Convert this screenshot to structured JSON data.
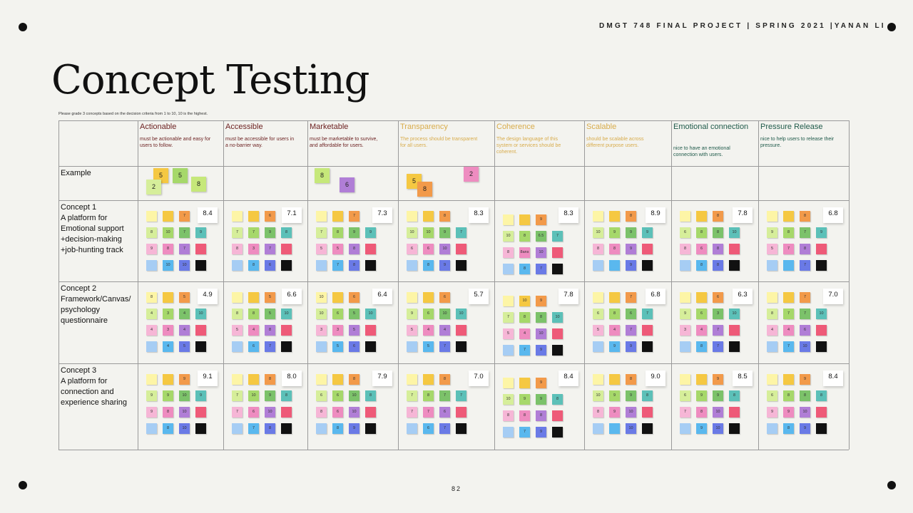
{
  "header": {
    "course": "DMGT 748 FINAL PROJECT | SPRING 2021 |YANAN LI"
  },
  "title": "Concept Testing",
  "instruction": "Please grade 3 concepts based on the decision criteria from 1 to 10, 10 is the highest.",
  "criteria": [
    {
      "name": "Actionable",
      "description": "must be actionable and easy for users to follow."
    },
    {
      "name": "Accessible",
      "description": "must be accessible for users in a no-barrier way."
    },
    {
      "name": "Marketable",
      "description": "must be marketable to survive, and affordable for users."
    },
    {
      "name": "Transparency",
      "description": "The process should be transparent for all users."
    },
    {
      "name": "Coherence",
      "description": "The design language of this system or services should be coherent."
    },
    {
      "name": "Scalable",
      "description": "should be scalable across different purpose users."
    },
    {
      "name": "Emotional connection",
      "description": "nice to have an emotional connection with users."
    },
    {
      "name": "Pressure Release",
      "description": "nice to help users to release their pressure."
    }
  ],
  "example": {
    "label": "Example",
    "notes": [
      [
        "5",
        "5",
        "2",
        "8"
      ],
      [],
      [
        "8",
        "6"
      ],
      [
        "5",
        "8",
        "2"
      ],
      [],
      [],
      [],
      []
    ]
  },
  "concepts": [
    {
      "label": [
        "Concept 1",
        "A platform for",
        "Emotional support",
        "+decision-making",
        "+job-hunting track"
      ],
      "cells": [
        {
          "score": "8.4",
          "notes": [
            [
              null,
              null,
              "7"
            ],
            [
              "8",
              "10",
              "7",
              "9"
            ],
            [
              "9",
              "8",
              "7",
              null
            ],
            [
              null,
              "10",
              "10",
              null
            ]
          ]
        },
        {
          "score": "7.1",
          "notes": [
            [
              null,
              null,
              "6"
            ],
            [
              "7",
              "7",
              "9",
              "8"
            ],
            [
              "8",
              "3",
              "7",
              null
            ],
            [
              null,
              "8",
              "6",
              null
            ]
          ]
        },
        {
          "score": "7.3",
          "notes": [
            [
              null,
              null,
              "7"
            ],
            [
              "7",
              "8",
              "9",
              "9"
            ],
            [
              "5",
              "5",
              "8",
              null
            ],
            [
              null,
              "7",
              "8",
              null
            ]
          ]
        },
        {
          "score": "8.3",
          "notes": [
            [
              null,
              null,
              "8"
            ],
            [
              "10",
              "10",
              "9",
              "7"
            ],
            [
              "6",
              "6",
              "10",
              null
            ],
            [
              null,
              "8",
              "9",
              null
            ]
          ]
        },
        {
          "score": "8.3",
          "notes": [
            [
              null,
              null,
              "9"
            ],
            [
              "10",
              "8",
              "6.5",
              "7"
            ],
            [
              "8",
              "8ans",
              "10",
              null
            ],
            [
              null,
              "8",
              "7",
              null
            ]
          ]
        },
        {
          "score": "8.9",
          "notes": [
            [
              null,
              null,
              "8"
            ],
            [
              "10",
              "9",
              "9",
              "9"
            ],
            [
              "8",
              "8",
              "9",
              null
            ],
            [
              null,
              null,
              "9",
              null
            ]
          ]
        },
        {
          "score": "7.8",
          "notes": [
            [
              null,
              null,
              "8"
            ],
            [
              "6",
              "8",
              "8",
              "10"
            ],
            [
              "8",
              "6",
              "8",
              null
            ],
            [
              null,
              "8",
              "8",
              null
            ]
          ]
        },
        {
          "score": "6.8",
          "notes": [
            [
              null,
              null,
              "8"
            ],
            [
              "9",
              "8",
              "7",
              "9"
            ],
            [
              "5",
              "7",
              "8",
              null
            ],
            [
              null,
              null,
              "7",
              null
            ]
          ]
        }
      ]
    },
    {
      "label": [
        "Concept 2",
        "Framework/Canvas/",
        "psychology",
        "questionnaire"
      ],
      "cells": [
        {
          "score": "4.9",
          "notes": [
            [
              "8",
              null,
              "5"
            ],
            [
              "4",
              "3",
              "4",
              "10"
            ],
            [
              "4",
              "3",
              "4",
              null
            ],
            [
              null,
              "4",
              "5",
              null
            ]
          ]
        },
        {
          "score": "6.6",
          "notes": [
            [
              null,
              null,
              "5"
            ],
            [
              "8",
              "8",
              "5",
              "10"
            ],
            [
              "5",
              "4",
              "8",
              null
            ],
            [
              null,
              "6",
              "7",
              null
            ]
          ]
        },
        {
          "score": "6.4",
          "notes": [
            [
              "10",
              null,
              "6"
            ],
            [
              "10",
              "6",
              "5",
              "10"
            ],
            [
              "3",
              "3",
              "5",
              null
            ],
            [
              null,
              "5",
              "6",
              null
            ]
          ]
        },
        {
          "score": "5.7",
          "notes": [
            [
              null,
              null,
              "6"
            ],
            [
              "9",
              "6",
              "10",
              "10"
            ],
            [
              "5",
              "4",
              "4",
              null
            ],
            [
              null,
              "5",
              "7",
              null
            ]
          ]
        },
        {
          "score": "7.8",
          "notes": [
            [
              null,
              "10",
              "9"
            ],
            [
              "7",
              "8",
              "8",
              "10"
            ],
            [
              "5",
              "4",
              "10",
              null
            ],
            [
              null,
              "7",
              "9",
              null
            ]
          ]
        },
        {
          "score": "6.8",
          "notes": [
            [
              null,
              null,
              "7"
            ],
            [
              "6",
              "8",
              "6",
              "7"
            ],
            [
              "5",
              "4",
              "7",
              null
            ],
            [
              null,
              "9",
              "9",
              null
            ]
          ]
        },
        {
          "score": "6.3",
          "notes": [
            [
              null,
              null,
              "6"
            ],
            [
              "9",
              "6",
              "3",
              "10"
            ],
            [
              "3",
              "4",
              "7",
              null
            ],
            [
              null,
              "8",
              "7",
              null
            ]
          ]
        },
        {
          "score": "7.0",
          "notes": [
            [
              null,
              null,
              "7"
            ],
            [
              "8",
              "7",
              "7",
              "10"
            ],
            [
              "4",
              "4",
              "6",
              null
            ],
            [
              null,
              "7",
              "10",
              null
            ]
          ]
        }
      ]
    },
    {
      "label": [
        "Concept 3",
        "A platform for",
        "connection and",
        "experience sharing"
      ],
      "cells": [
        {
          "score": "9.1",
          "notes": [
            [
              null,
              null,
              "9"
            ],
            [
              "9",
              "9",
              "10",
              "9"
            ],
            [
              "9",
              "8",
              "10",
              null
            ],
            [
              null,
              "8",
              "10",
              null
            ]
          ]
        },
        {
          "score": "8.0",
          "notes": [
            [
              null,
              null,
              "8"
            ],
            [
              "7",
              "10",
              "9",
              "8"
            ],
            [
              "7",
              "6",
              "10",
              null
            ],
            [
              null,
              "7",
              "8",
              null
            ]
          ]
        },
        {
          "score": "7.9",
          "notes": [
            [
              null,
              null,
              "8"
            ],
            [
              "6",
              "6",
              "10",
              "8"
            ],
            [
              "8",
              "6",
              "10",
              null
            ],
            [
              null,
              "8",
              "9",
              null
            ]
          ]
        },
        {
          "score": "7.0",
          "notes": [
            [
              null,
              null,
              "8"
            ],
            [
              "7",
              "8",
              "7",
              "7"
            ],
            [
              "7",
              "7",
              "6",
              null
            ],
            [
              null,
              "6",
              "7",
              null
            ]
          ]
        },
        {
          "score": "8.4",
          "notes": [
            [
              null,
              null,
              "9"
            ],
            [
              "10",
              "9",
              "9",
              "8"
            ],
            [
              "8",
              "8",
              "8",
              null
            ],
            [
              null,
              "7",
              "9",
              null
            ]
          ]
        },
        {
          "score": "9.0",
          "notes": [
            [
              null,
              null,
              "8"
            ],
            [
              "10",
              "9",
              "9",
              "8"
            ],
            [
              "8",
              "9",
              "10",
              null
            ],
            [
              null,
              null,
              "10",
              null
            ]
          ]
        },
        {
          "score": "8.5",
          "notes": [
            [
              null,
              null,
              "9"
            ],
            [
              "6",
              "9",
              "9",
              "8"
            ],
            [
              "7",
              "8",
              "10",
              null
            ],
            [
              null,
              "9",
              "10",
              null
            ]
          ]
        },
        {
          "score": "8.4",
          "notes": [
            [
              null,
              null,
              "9"
            ],
            [
              "6",
              "8",
              "8",
              "8"
            ],
            [
              "9",
              "9",
              "10",
              null
            ],
            [
              null,
              "8",
              "9",
              null
            ]
          ]
        }
      ]
    }
  ],
  "page_number": "82"
}
